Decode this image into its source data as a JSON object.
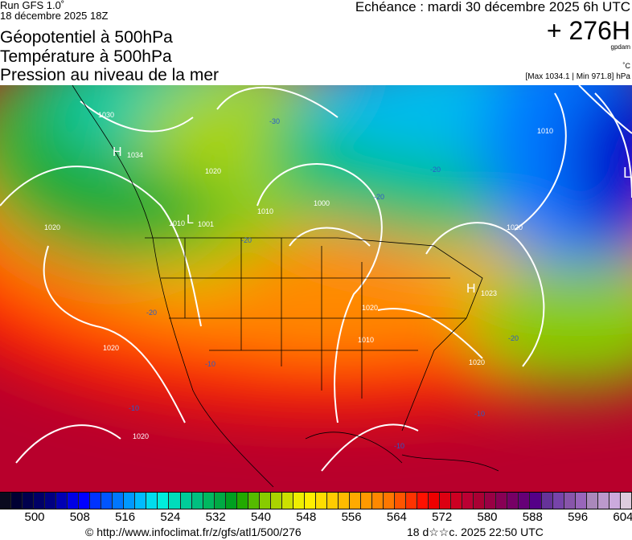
{
  "header": {
    "run": "Run GFS 1.0˚",
    "run_date": "18 décembre 2025 18Z",
    "titles": [
      "Géopotentiel à 500hPa",
      "Température à 500hPa",
      "Pression au niveau de la mer"
    ],
    "echeance": "Echéance : mardi 30 décembre 2025 6h UTC",
    "lead": "+ 276H",
    "unit_geopot": "gpdam",
    "unit_temp": "˚C",
    "pressure_range": "[Max 1034.1 | Min 971.8] hPa"
  },
  "map": {
    "pressure_labels": [
      "1030",
      "H",
      "1034",
      "1020",
      "1010",
      "L",
      "1001",
      "1000",
      "1010",
      "1020",
      "1020",
      "1010",
      "1020",
      "H",
      "1023",
      "1020",
      "1010",
      "1020",
      "1020",
      "L"
    ],
    "temp_labels": [
      "-30",
      "-20",
      "-20",
      "-20",
      "-20",
      "-20",
      "-10",
      "-10",
      "-10",
      "-10"
    ]
  },
  "colorbar": {
    "colors": [
      "#0a0a1e",
      "#000033",
      "#00004d",
      "#000066",
      "#000080",
      "#0000b3",
      "#0000e6",
      "#0000ff",
      "#0033ff",
      "#0055ff",
      "#0077ff",
      "#0099ff",
      "#00bbff",
      "#00ddee",
      "#00eedd",
      "#00ddbb",
      "#00cc99",
      "#00c080",
      "#00b860",
      "#00aa44",
      "#00a020",
      "#22aa00",
      "#55bb00",
      "#88cc00",
      "#aad400",
      "#cce000",
      "#eeee00",
      "#ffee00",
      "#ffdd00",
      "#ffcc00",
      "#ffbb00",
      "#ffaa00",
      "#ff9900",
      "#ff8800",
      "#ff7700",
      "#ff5500",
      "#ff3300",
      "#ff1100",
      "#ee0000",
      "#dd0011",
      "#cc0022",
      "#bb0033",
      "#aa0033",
      "#990044",
      "#880055",
      "#770066",
      "#660077",
      "#550088",
      "#663399",
      "#7744aa",
      "#8855aa",
      "#9966bb",
      "#aa88bb",
      "#bb99cc",
      "#ccaadd",
      "#ddccdd"
    ],
    "ticks": [
      "500",
      "508",
      "516",
      "524",
      "532",
      "540",
      "548",
      "556",
      "564",
      "572",
      "580",
      "588",
      "596",
      "604"
    ]
  },
  "footer": {
    "copyright": "© http://www.infoclimat.fr/z/gfs/atl1/500/276",
    "generated": "18 d☆☆c. 2025 22:50 UTC"
  }
}
